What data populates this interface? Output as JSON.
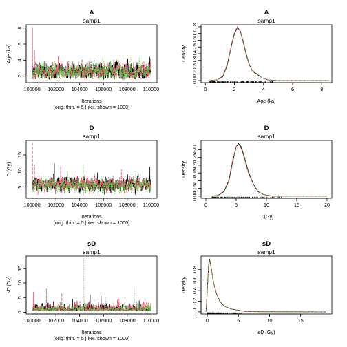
{
  "colors": {
    "black": "#000000",
    "red": "#DF536B",
    "green": "#61D04F"
  },
  "chart_data": [
    {
      "type": "line",
      "panel": "trace",
      "title": "A",
      "subtitle": "samp1",
      "xlabel": "Iterations",
      "xlabel2": "(orig. thin. = 5 | iter. shown = 1000)",
      "ylabel": "Age (ka)",
      "xlim": [
        99500,
        110500
      ],
      "ylim": [
        1.2,
        8.4
      ],
      "xticks": [
        100000,
        102000,
        104000,
        106000,
        108000,
        110000
      ],
      "xticklabels": [
        "100000",
        "102000",
        "104000",
        "106000",
        "108000",
        "110000"
      ],
      "yticks": [
        2,
        4,
        6,
        8
      ],
      "yticklabels": [
        "2",
        "4",
        "6",
        "8"
      ],
      "series": [
        {
          "color": "#000000",
          "linetype": "solid",
          "base": 2.6,
          "sd": 0.45,
          "spikes": [
            [
              101500,
              3.9
            ],
            [
              105200,
              4.0
            ],
            [
              109900,
              4.4
            ]
          ]
        },
        {
          "color": "#DF536B",
          "linetype": "dashed",
          "base": 2.65,
          "sd": 0.45,
          "spikes": [
            [
              100030,
              8.1
            ],
            [
              100200,
              5.3
            ],
            [
              102200,
              4.5
            ],
            [
              107800,
              4.3
            ],
            [
              103400,
              3.9
            ]
          ]
        },
        {
          "color": "#61D04F",
          "linetype": "dotted",
          "base": 2.55,
          "sd": 0.45,
          "spikes": [
            [
              108300,
              4.4
            ],
            [
              104800,
              3.8
            ],
            [
              106600,
              3.9
            ]
          ]
        }
      ]
    },
    {
      "type": "line",
      "panel": "density",
      "title": "A",
      "subtitle": "samp1",
      "xlabel": "Age (ka)",
      "ylabel": "Density",
      "xlim": [
        -0.3,
        8.7
      ],
      "ylim": [
        -0.03,
        0.83
      ],
      "xticks": [
        0,
        2,
        4,
        6,
        8
      ],
      "xticklabels": [
        "0",
        "2",
        "4",
        "6",
        "8"
      ],
      "yticks": [
        0.0,
        0.1,
        0.2,
        0.3,
        0.4,
        0.5,
        0.6,
        0.7,
        0.8
      ],
      "yticklabels": [
        "0.0",
        "0.1",
        "0.2",
        "0.3",
        "0.4",
        "0.5",
        "0.6",
        "0.7",
        "0.8"
      ],
      "rug": [
        0.3,
        4.8
      ],
      "series": [
        {
          "color": "#000000",
          "linetype": "solid",
          "points": [
            [
              0.2,
              0.0
            ],
            [
              0.8,
              0.01
            ],
            [
              1.2,
              0.06
            ],
            [
              1.5,
              0.23
            ],
            [
              1.8,
              0.53
            ],
            [
              2.0,
              0.7
            ],
            [
              2.2,
              0.79
            ],
            [
              2.4,
              0.74
            ],
            [
              2.6,
              0.58
            ],
            [
              2.8,
              0.4
            ],
            [
              3.0,
              0.25
            ],
            [
              3.2,
              0.16
            ],
            [
              3.4,
              0.12
            ],
            [
              3.6,
              0.09
            ],
            [
              3.9,
              0.04
            ],
            [
              4.3,
              0.01
            ],
            [
              5.0,
              0.0
            ],
            [
              8.5,
              0.0
            ]
          ]
        },
        {
          "color": "#DF536B",
          "linetype": "dashed",
          "points": [
            [
              0.2,
              0.0
            ],
            [
              0.8,
              0.01
            ],
            [
              1.2,
              0.07
            ],
            [
              1.5,
              0.25
            ],
            [
              1.8,
              0.55
            ],
            [
              2.0,
              0.72
            ],
            [
              2.2,
              0.8
            ],
            [
              2.4,
              0.73
            ],
            [
              2.6,
              0.56
            ],
            [
              2.8,
              0.38
            ],
            [
              3.0,
              0.24
            ],
            [
              3.2,
              0.15
            ],
            [
              3.4,
              0.11
            ],
            [
              3.6,
              0.08
            ],
            [
              3.9,
              0.04
            ],
            [
              4.3,
              0.01
            ],
            [
              5.0,
              0.0
            ],
            [
              8.5,
              0.0
            ]
          ]
        },
        {
          "color": "#61D04F",
          "linetype": "dotted",
          "points": [
            [
              0.2,
              0.0
            ],
            [
              0.8,
              0.01
            ],
            [
              1.2,
              0.05
            ],
            [
              1.5,
              0.22
            ],
            [
              1.8,
              0.5
            ],
            [
              2.0,
              0.68
            ],
            [
              2.2,
              0.77
            ],
            [
              2.4,
              0.75
            ],
            [
              2.6,
              0.6
            ],
            [
              2.8,
              0.42
            ],
            [
              3.0,
              0.26
            ],
            [
              3.2,
              0.16
            ],
            [
              3.4,
              0.12
            ],
            [
              3.6,
              0.09
            ],
            [
              3.9,
              0.04
            ],
            [
              4.3,
              0.01
            ],
            [
              5.0,
              0.0
            ],
            [
              8.5,
              0.0
            ]
          ]
        }
      ]
    },
    {
      "type": "line",
      "panel": "trace",
      "title": "D",
      "subtitle": "samp1",
      "xlabel": "Iterations",
      "xlabel2": "(orig. thin. = 5 | iter. shown = 1000)",
      "ylabel": "D (Gy)",
      "xlim": [
        99500,
        110500
      ],
      "ylim": [
        1.5,
        19.5
      ],
      "xticks": [
        100000,
        102000,
        104000,
        106000,
        108000,
        110000
      ],
      "xticklabels": [
        "100000",
        "102000",
        "104000",
        "106000",
        "108000",
        "110000"
      ],
      "yticks": [
        5,
        10,
        15
      ],
      "yticklabels": [
        "5",
        "10",
        "15"
      ],
      "series": [
        {
          "color": "#000000",
          "linetype": "solid",
          "base": 5.8,
          "sd": 0.9,
          "spikes": [
            [
              109900,
              11.3
            ],
            [
              105500,
              9.5
            ],
            [
              101800,
              9.2
            ]
          ]
        },
        {
          "color": "#DF536B",
          "linetype": "dashed",
          "base": 5.9,
          "sd": 0.95,
          "spikes": [
            [
              100030,
              19.0
            ],
            [
              100200,
              12.0
            ],
            [
              101900,
              12.4
            ],
            [
              102400,
              11.5
            ],
            [
              107500,
              10.5
            ]
          ]
        },
        {
          "color": "#61D04F",
          "linetype": "dotted",
          "base": 5.7,
          "sd": 0.9,
          "spikes": [
            [
              104300,
              12.0
            ],
            [
              108700,
              10.0
            ],
            [
              103000,
              9.6
            ]
          ]
        }
      ]
    },
    {
      "type": "line",
      "panel": "density",
      "title": "D",
      "subtitle": "samp1",
      "xlabel": "D (Gy)",
      "ylabel": "Density",
      "xlim": [
        -0.8,
        20.8
      ],
      "ylim": [
        -0.014,
        0.36
      ],
      "xticks": [
        0,
        5,
        10,
        15,
        20
      ],
      "xticklabels": [
        "0",
        "5",
        "10",
        "15",
        "20"
      ],
      "yticks": [
        0.0,
        0.05,
        0.1,
        0.15,
        0.2,
        0.25,
        0.3
      ],
      "yticklabels": [
        "0.00",
        "0.05",
        "0.10",
        "0.15",
        "0.20",
        "0.25",
        "0.30"
      ],
      "rug": [
        1.0,
        12.5
      ],
      "series": [
        {
          "color": "#000000",
          "linetype": "solid",
          "points": [
            [
              1.0,
              0.0
            ],
            [
              2.0,
              0.005
            ],
            [
              3.0,
              0.03
            ],
            [
              3.8,
              0.1
            ],
            [
              4.4,
              0.22
            ],
            [
              5.0,
              0.32
            ],
            [
              5.4,
              0.34
            ],
            [
              5.8,
              0.32
            ],
            [
              6.3,
              0.26
            ],
            [
              7.0,
              0.16
            ],
            [
              7.8,
              0.08
            ],
            [
              8.6,
              0.03
            ],
            [
              9.5,
              0.01
            ],
            [
              11.0,
              0.0
            ],
            [
              20.0,
              0.0
            ]
          ]
        },
        {
          "color": "#DF536B",
          "linetype": "dashed",
          "points": [
            [
              1.0,
              0.0
            ],
            [
              2.0,
              0.006
            ],
            [
              3.0,
              0.035
            ],
            [
              3.8,
              0.11
            ],
            [
              4.4,
              0.23
            ],
            [
              5.0,
              0.32
            ],
            [
              5.4,
              0.335
            ],
            [
              5.8,
              0.31
            ],
            [
              6.3,
              0.25
            ],
            [
              7.0,
              0.15
            ],
            [
              7.8,
              0.08
            ],
            [
              8.6,
              0.03
            ],
            [
              9.5,
              0.01
            ],
            [
              11.0,
              0.0
            ],
            [
              20.0,
              0.0
            ]
          ]
        },
        {
          "color": "#61D04F",
          "linetype": "dotted",
          "points": [
            [
              1.0,
              0.0
            ],
            [
              2.0,
              0.004
            ],
            [
              3.0,
              0.025
            ],
            [
              3.8,
              0.09
            ],
            [
              4.4,
              0.2
            ],
            [
              5.0,
              0.3
            ],
            [
              5.4,
              0.33
            ],
            [
              5.8,
              0.33
            ],
            [
              6.3,
              0.27
            ],
            [
              7.0,
              0.17
            ],
            [
              7.8,
              0.09
            ],
            [
              8.6,
              0.035
            ],
            [
              9.5,
              0.012
            ],
            [
              11.0,
              0.0
            ],
            [
              20.0,
              0.0
            ]
          ]
        }
      ]
    },
    {
      "type": "line",
      "panel": "trace",
      "title": "sD",
      "subtitle": "samp1",
      "xlabel": "Iterations",
      "xlabel2": "(orig. thin. = 5 | iter. shown = 1000)",
      "ylabel": "sD (Gy)",
      "xlim": [
        99500,
        110500
      ],
      "ylim": [
        -0.6,
        19.2
      ],
      "xticks": [
        100000,
        102000,
        104000,
        106000,
        108000,
        110000
      ],
      "xticklabels": [
        "100000",
        "102000",
        "104000",
        "106000",
        "108000",
        "110000"
      ],
      "yticks": [
        0,
        5,
        10,
        15
      ],
      "yticklabels": [
        "0",
        "5",
        "10",
        "15"
      ],
      "series": [
        {
          "color": "#000000",
          "linetype": "solid",
          "base": 0.8,
          "sd": 0.8,
          "spikes": [
            [
              105800,
              5.5
            ],
            [
              103400,
              4.5
            ],
            [
              109000,
              4.0
            ]
          ]
        },
        {
          "color": "#DF536B",
          "linetype": "dashed",
          "base": 0.9,
          "sd": 0.9,
          "spikes": [
            [
              100100,
              7.0
            ],
            [
              101200,
              8.0
            ],
            [
              102500,
              6.5
            ],
            [
              104900,
              6.0
            ],
            [
              107300,
              4.5
            ]
          ]
        },
        {
          "color": "#61D04F",
          "linetype": "dotted",
          "base": 0.8,
          "sd": 0.8,
          "spikes": [
            [
              104350,
              18.6
            ],
            [
              108600,
              8.2
            ],
            [
              106200,
              5.0
            ]
          ]
        }
      ]
    },
    {
      "type": "line",
      "panel": "density",
      "title": "sD",
      "subtitle": "samp1",
      "xlabel": "sD (Gy)",
      "ylabel": "Density",
      "xlim": [
        -1.0,
        20.0
      ],
      "ylim": [
        -0.04,
        1.05
      ],
      "xticks": [
        0,
        5,
        10,
        15
      ],
      "xticklabels": [
        "0",
        "5",
        "10",
        "15"
      ],
      "yticks": [
        0.0,
        0.2,
        0.4,
        0.6,
        0.8
      ],
      "yticklabels": [
        "0.0",
        "0.2",
        "0.4",
        "0.6",
        "0.8"
      ],
      "rug": [
        0.0,
        5.5
      ],
      "series": [
        {
          "color": "#000000",
          "linetype": "solid",
          "points": [
            [
              -0.2,
              0.0
            ],
            [
              0.0,
              0.4
            ],
            [
              0.2,
              0.85
            ],
            [
              0.35,
              1.0
            ],
            [
              0.6,
              0.85
            ],
            [
              1.0,
              0.55
            ],
            [
              1.5,
              0.33
            ],
            [
              2.0,
              0.2
            ],
            [
              2.5,
              0.13
            ],
            [
              3.0,
              0.09
            ],
            [
              4.0,
              0.05
            ],
            [
              5.0,
              0.03
            ],
            [
              6.0,
              0.01
            ],
            [
              8.0,
              0.003
            ],
            [
              19.0,
              0.0
            ]
          ]
        },
        {
          "color": "#DF536B",
          "linetype": "dashed",
          "points": [
            [
              -0.2,
              0.0
            ],
            [
              0.0,
              0.38
            ],
            [
              0.2,
              0.82
            ],
            [
              0.35,
              0.97
            ],
            [
              0.6,
              0.84
            ],
            [
              1.0,
              0.56
            ],
            [
              1.5,
              0.34
            ],
            [
              2.0,
              0.21
            ],
            [
              2.5,
              0.14
            ],
            [
              3.0,
              0.09
            ],
            [
              4.0,
              0.05
            ],
            [
              5.0,
              0.03
            ],
            [
              6.0,
              0.01
            ],
            [
              8.0,
              0.003
            ],
            [
              19.0,
              0.0
            ]
          ]
        },
        {
          "color": "#61D04F",
          "linetype": "dotted",
          "points": [
            [
              -0.2,
              0.0
            ],
            [
              0.0,
              0.36
            ],
            [
              0.2,
              0.8
            ],
            [
              0.35,
              0.95
            ],
            [
              0.6,
              0.83
            ],
            [
              1.0,
              0.55
            ],
            [
              1.5,
              0.33
            ],
            [
              2.0,
              0.2
            ],
            [
              2.5,
              0.13
            ],
            [
              3.0,
              0.09
            ],
            [
              4.0,
              0.05
            ],
            [
              5.0,
              0.03
            ],
            [
              6.0,
              0.015
            ],
            [
              8.0,
              0.006
            ],
            [
              12.0,
              0.002
            ],
            [
              19.0,
              0.0
            ]
          ]
        }
      ]
    }
  ]
}
